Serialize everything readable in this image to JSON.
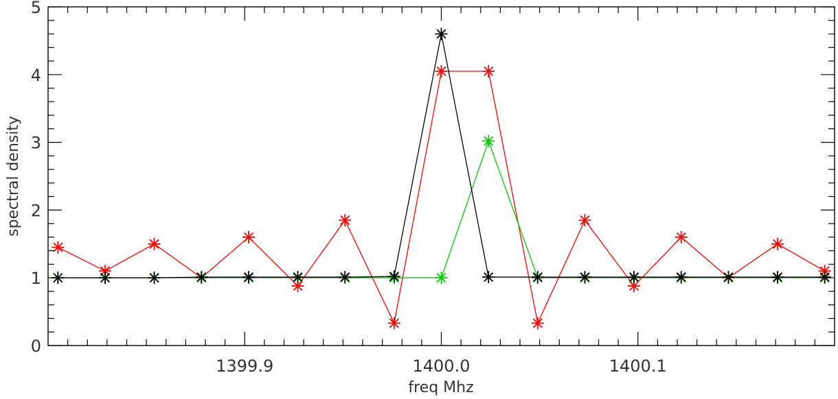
{
  "chart_data": {
    "type": "line",
    "title": "",
    "xlabel": "freq Mhz",
    "ylabel": "spectral density",
    "xlim": [
      1399.8,
      1400.2
    ],
    "ylim": [
      0,
      5
    ],
    "xticks": [
      {
        "value": 1399.9,
        "label": "1399.9"
      },
      {
        "value": 1400.0,
        "label": "1400.0"
      },
      {
        "value": 1400.1,
        "label": "1400.1"
      }
    ],
    "yticks": [
      {
        "value": 0,
        "label": "0"
      },
      {
        "value": 1,
        "label": "1"
      },
      {
        "value": 2,
        "label": "2"
      },
      {
        "value": 3,
        "label": "3"
      },
      {
        "value": 4,
        "label": "4"
      },
      {
        "value": 5,
        "label": "5"
      }
    ],
    "x": [
      1399.805,
      1399.829,
      1399.854,
      1399.878,
      1399.902,
      1399.927,
      1399.951,
      1399.976,
      1400.0,
      1400.024,
      1400.049,
      1400.073,
      1400.098,
      1400.122,
      1400.146,
      1400.171,
      1400.195
    ],
    "series": [
      {
        "color": "#ff0000",
        "values": [
          1.45,
          1.1,
          1.5,
          1.0,
          1.6,
          0.88,
          1.85,
          0.33,
          4.05,
          4.05,
          0.33,
          1.85,
          0.88,
          1.6,
          1.0,
          1.5,
          1.1
        ]
      },
      {
        "color": "#00cc00",
        "values": [
          1.0,
          1.0,
          1.0,
          1.0,
          1.0,
          1.0,
          1.0,
          1.0,
          1.0,
          3.02,
          1.0,
          1.0,
          1.0,
          1.0,
          1.0,
          1.0,
          1.0
        ]
      },
      {
        "color": "#000000",
        "values": [
          1.0,
          1.0,
          1.0,
          1.01,
          1.01,
          1.01,
          1.01,
          1.02,
          4.6,
          1.01,
          1.01,
          1.01,
          1.01,
          1.01,
          1.01,
          1.01,
          1.01
        ]
      }
    ],
    "grid": false
  }
}
